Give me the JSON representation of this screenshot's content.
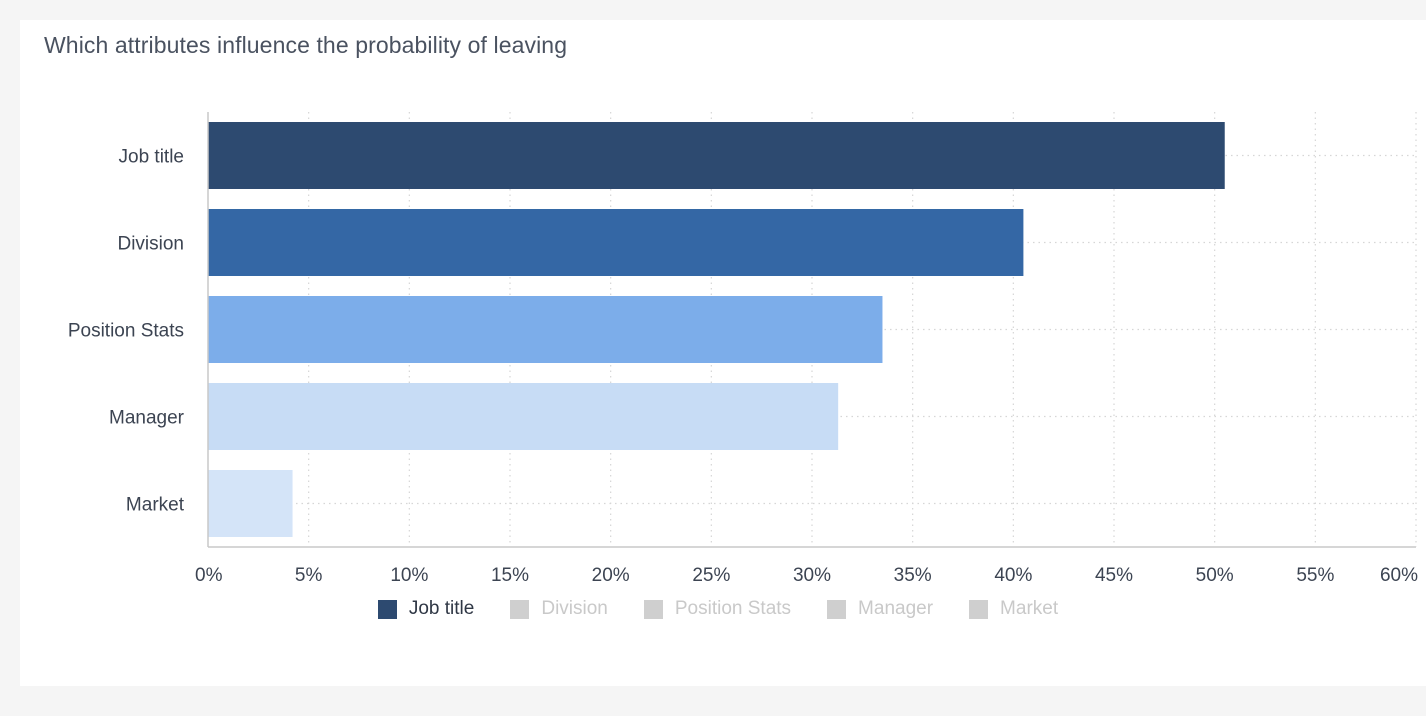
{
  "card": {
    "title": "Which attributes influence the probability of leaving"
  },
  "chart_data": {
    "type": "bar",
    "orientation": "horizontal",
    "categories": [
      "Job title",
      "Division",
      "Position Stats",
      "Manager",
      "Market"
    ],
    "values": [
      50.5,
      40.5,
      33.5,
      31.3,
      4.2
    ],
    "bar_colors": [
      "#2d4a70",
      "#3467a5",
      "#7cadea",
      "#c7dcf5",
      "#d4e4f8"
    ],
    "xlim": [
      0,
      60
    ],
    "xticks": [
      0,
      5,
      10,
      15,
      20,
      25,
      30,
      35,
      40,
      45,
      50,
      55,
      60
    ],
    "xtick_labels": [
      "0%",
      "5%",
      "10%",
      "15%",
      "20%",
      "25%",
      "30%",
      "35%",
      "40%",
      "45%",
      "50%",
      "55%",
      "60%"
    ],
    "grid": true,
    "legend_position": "bottom-center",
    "legend": [
      {
        "label": "Job title",
        "active": true,
        "color": "#2d4a70"
      },
      {
        "label": "Division",
        "active": false,
        "color": "#cfcfcf"
      },
      {
        "label": "Position Stats",
        "active": false,
        "color": "#cfcfcf"
      },
      {
        "label": "Manager",
        "active": false,
        "color": "#cfcfcf"
      },
      {
        "label": "Market",
        "active": false,
        "color": "#cfcfcf"
      }
    ],
    "legend_active_text_color": "#2f3745",
    "legend_inactive_text_color": "#c9c9c9"
  }
}
